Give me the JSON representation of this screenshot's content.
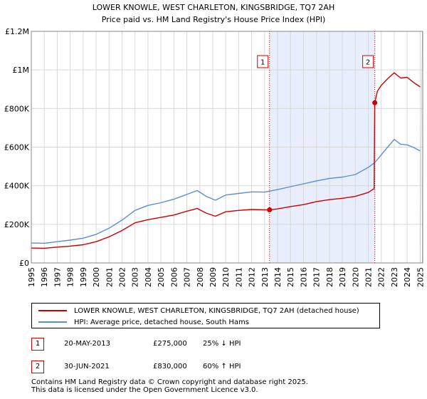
{
  "chart_data": {
    "type": "line",
    "title": "LOWER KNOWLE, WEST CHARLETON, KINGSBRIDGE, TQ7 2AH",
    "subtitle": "Price paid vs. HM Land Registry's House Price Index (HPI)",
    "xlim": [
      1995.0,
      2025.2
    ],
    "ylim": [
      0,
      1200000
    ],
    "y_ticks": [
      0,
      200000,
      400000,
      600000,
      800000,
      1000000,
      1200000
    ],
    "y_tick_labels": [
      "£0",
      "£200K",
      "£400K",
      "£600K",
      "£800K",
      "£1M",
      "£1.2M"
    ],
    "x_ticks": [
      1995,
      1996,
      1997,
      1998,
      1999,
      2000,
      2001,
      2002,
      2003,
      2004,
      2005,
      2006,
      2007,
      2008,
      2009,
      2010,
      2011,
      2012,
      2013,
      2014,
      2015,
      2016,
      2017,
      2018,
      2019,
      2020,
      2021,
      2022,
      2023,
      2024,
      2025
    ],
    "x_tick_labels": [
      "1995",
      "1996",
      "1997",
      "1998",
      "1999",
      "2000",
      "2001",
      "2002",
      "2003",
      "2004",
      "2005",
      "2006",
      "2007",
      "2008",
      "2009",
      "2010",
      "2011",
      "2012",
      "2013",
      "2014",
      "2015",
      "2016",
      "2017",
      "2018",
      "2019",
      "2020",
      "2021",
      "2022",
      "2023",
      "2024",
      "2025"
    ],
    "grid": true,
    "shaded_span": [
      2013.38,
      2021.5
    ],
    "series": [
      {
        "name": "LOWER KNOWLE, WEST CHARLETON, KINGSBRIDGE, TQ7 2AH (detached house)",
        "color": "#cc0000",
        "x": [
          1995.0,
          1996.0,
          1997.0,
          1998.0,
          1999.0,
          2000.0,
          2001.0,
          2002.0,
          2003.0,
          2004.0,
          2005.0,
          2006.0,
          2007.0,
          2007.8,
          2008.5,
          2009.2,
          2010.0,
          2011.0,
          2012.0,
          2013.0,
          2013.38,
          2014.0,
          2015.0,
          2016.0,
          2017.0,
          2018.0,
          2019.0,
          2020.0,
          2021.0,
          2021.45,
          2021.5,
          2021.7,
          2022.0,
          2022.5,
          2023.0,
          2023.5,
          2024.0,
          2024.5,
          2025.0
        ],
        "values": [
          77000,
          76000,
          82000,
          87000,
          94000,
          110000,
          135000,
          168000,
          208000,
          224000,
          236000,
          248000,
          268000,
          282000,
          258000,
          242000,
          265000,
          272000,
          277000,
          275000,
          275000,
          280000,
          292000,
          302000,
          318000,
          328000,
          335000,
          345000,
          365000,
          385000,
          830000,
          890000,
          920000,
          955000,
          985000,
          958000,
          962000,
          935000,
          912000
        ]
      },
      {
        "name": "HPI: Average price, detached house, South Hams",
        "color": "#5b8fd0",
        "x": [
          1995.0,
          1996.0,
          1997.0,
          1998.0,
          1999.0,
          2000.0,
          2001.0,
          2002.0,
          2003.0,
          2004.0,
          2005.0,
          2006.0,
          2007.0,
          2007.8,
          2008.5,
          2009.2,
          2010.0,
          2011.0,
          2012.0,
          2013.0,
          2014.0,
          2015.0,
          2016.0,
          2017.0,
          2018.0,
          2019.0,
          2020.0,
          2021.0,
          2021.5,
          2022.0,
          2022.5,
          2023.0,
          2023.5,
          2024.0,
          2024.5,
          2025.0
        ],
        "values": [
          103000,
          102000,
          110000,
          118000,
          128000,
          148000,
          180000,
          222000,
          272000,
          298000,
          312000,
          330000,
          355000,
          375000,
          345000,
          325000,
          352000,
          360000,
          368000,
          367000,
          380000,
          395000,
          410000,
          425000,
          438000,
          445000,
          458000,
          495000,
          520000,
          560000,
          600000,
          640000,
          615000,
          612000,
          598000,
          580000
        ]
      }
    ],
    "transactions": [
      {
        "label": "1",
        "x": 2013.38,
        "y": 275000
      },
      {
        "label": "2",
        "x": 2021.5,
        "y": 830000
      }
    ],
    "legend_position": "below"
  },
  "legend": {
    "property_label": "LOWER KNOWLE, WEST CHARLETON, KINGSBRIDGE, TQ7 2AH (detached house)",
    "hpi_label": "HPI: Average price, detached house, South Hams"
  },
  "transactions_table": [
    {
      "num": "1",
      "date": "20-MAY-2013",
      "price": "£275,000",
      "hpi": "25% ↓ HPI"
    },
    {
      "num": "2",
      "date": "30-JUN-2021",
      "price": "£830,000",
      "hpi": "60% ↑ HPI"
    }
  ],
  "footer": {
    "line1": "Contains HM Land Registry data © Crown copyright and database right 2025.",
    "line2": "This data is licensed under the Open Government Licence v3.0."
  },
  "colors": {
    "property": "#cc0000",
    "hpi": "#5b8fd0",
    "shade": "#e8eefb",
    "grid": "#d9d9d9"
  }
}
